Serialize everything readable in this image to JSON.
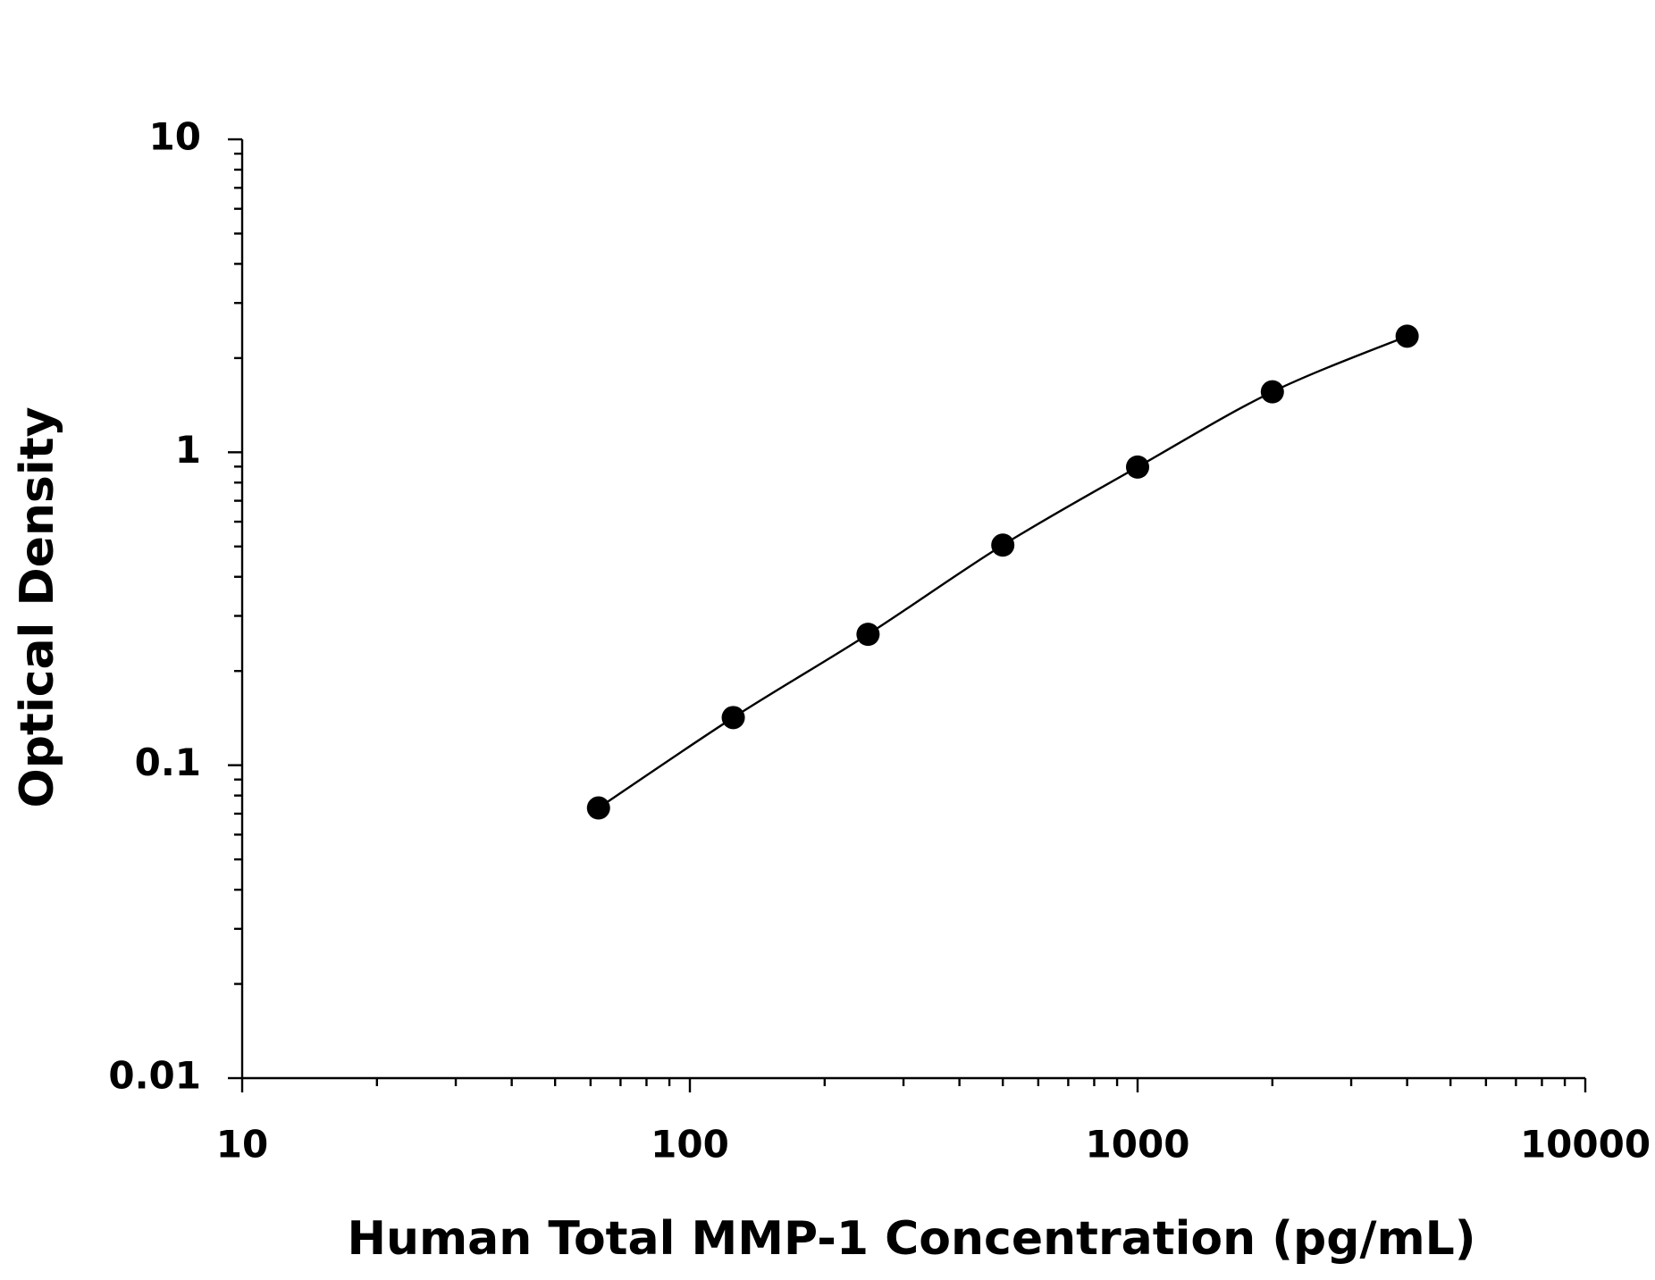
{
  "chart_data": {
    "type": "line",
    "xlabel": "Human Total MMP-1 Concentration (pg/mL)",
    "ylabel": "Optical Density",
    "x": [
      62.5,
      125,
      250,
      500,
      1000,
      2000,
      4000
    ],
    "series": [
      {
        "color": "#000000",
        "values": [
          0.073,
          0.142,
          0.262,
          0.505,
          0.897,
          1.56,
          2.35
        ]
      }
    ],
    "xscale": "log",
    "yscale": "log",
    "xlim": [
      10,
      10000
    ],
    "ylim": [
      0.01,
      10
    ],
    "xticks": [
      10,
      100,
      1000,
      10000
    ],
    "yticks": [
      0.01,
      0.1,
      1,
      10
    ]
  }
}
